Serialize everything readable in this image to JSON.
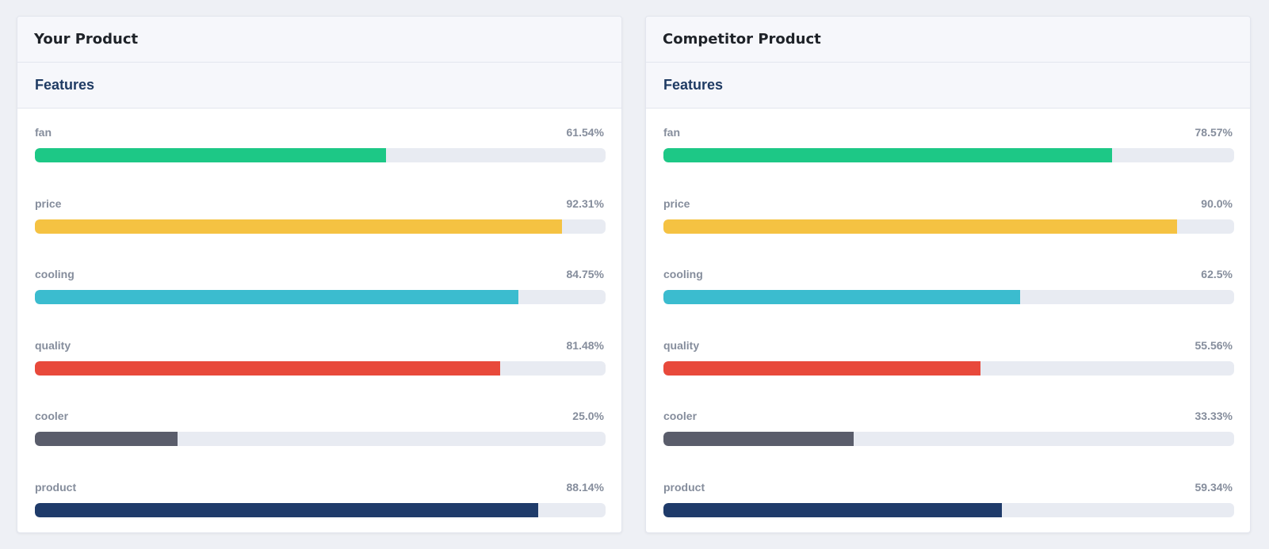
{
  "colors": {
    "fan": "#1dc886",
    "price": "#f5c242",
    "cooling": "#3bbccf",
    "quality": "#e8493b",
    "cooler": "#5a5d6b",
    "product": "#1f3b6a"
  },
  "panels": [
    {
      "title": "Your Product",
      "section_title": "Features",
      "features": [
        {
          "name": "fan",
          "percent_text": "61.54%",
          "value": 61.54,
          "color_key": "fan"
        },
        {
          "name": "price",
          "percent_text": "92.31%",
          "value": 92.31,
          "color_key": "price"
        },
        {
          "name": "cooling",
          "percent_text": "84.75%",
          "value": 84.75,
          "color_key": "cooling"
        },
        {
          "name": "quality",
          "percent_text": "81.48%",
          "value": 81.48,
          "color_key": "quality"
        },
        {
          "name": "cooler",
          "percent_text": "25.0%",
          "value": 25.0,
          "color_key": "cooler"
        },
        {
          "name": "product",
          "percent_text": "88.14%",
          "value": 88.14,
          "color_key": "product"
        }
      ]
    },
    {
      "title": "Competitor Product",
      "section_title": "Features",
      "features": [
        {
          "name": "fan",
          "percent_text": "78.57%",
          "value": 78.57,
          "color_key": "fan"
        },
        {
          "name": "price",
          "percent_text": "90.0%",
          "value": 90.0,
          "color_key": "price"
        },
        {
          "name": "cooling",
          "percent_text": "62.5%",
          "value": 62.5,
          "color_key": "cooling"
        },
        {
          "name": "quality",
          "percent_text": "55.56%",
          "value": 55.56,
          "color_key": "quality"
        },
        {
          "name": "cooler",
          "percent_text": "33.33%",
          "value": 33.33,
          "color_key": "cooler"
        },
        {
          "name": "product",
          "percent_text": "59.34%",
          "value": 59.34,
          "color_key": "product"
        }
      ]
    }
  ]
}
